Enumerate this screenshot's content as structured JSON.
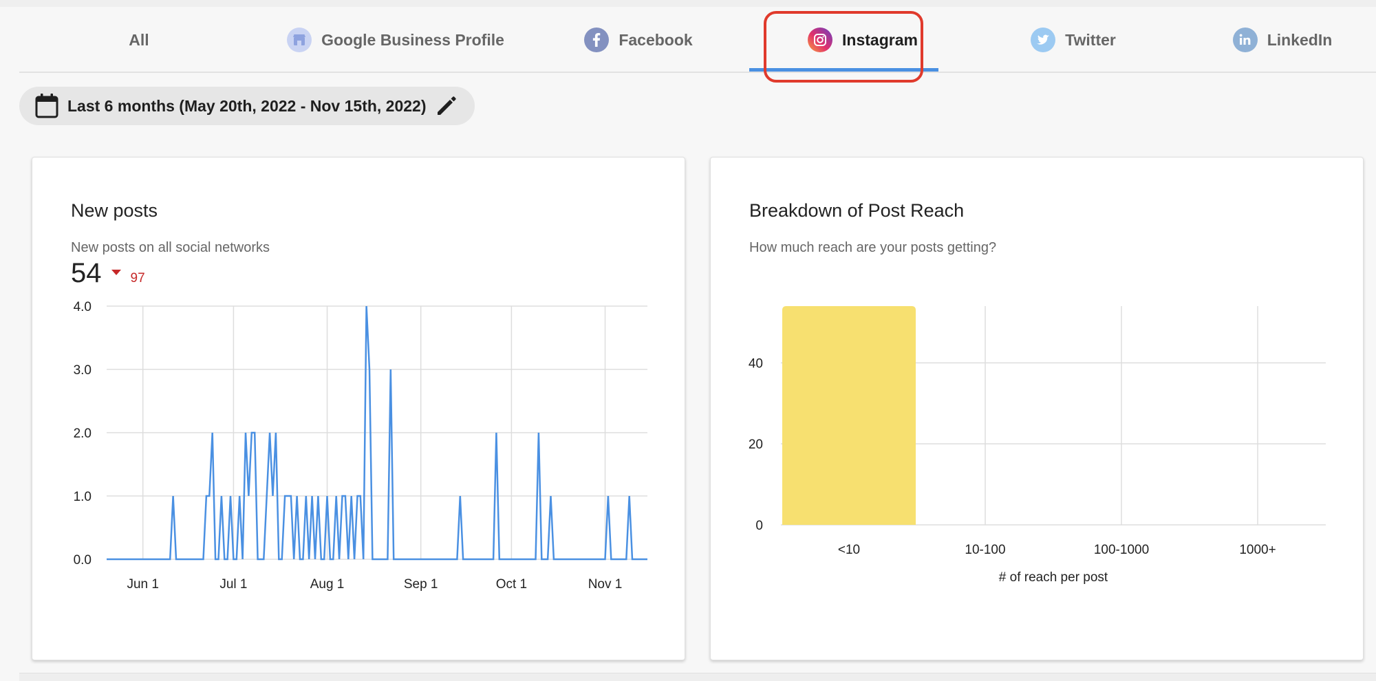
{
  "tabs": [
    {
      "label": "All",
      "icon": null
    },
    {
      "label": "Google Business Profile",
      "icon": "google-business-icon"
    },
    {
      "label": "Facebook",
      "icon": "facebook-icon"
    },
    {
      "label": "Instagram",
      "icon": "instagram-icon",
      "active": true
    },
    {
      "label": "Twitter",
      "icon": "twitter-icon"
    },
    {
      "label": "LinkedIn",
      "icon": "linkedin-icon"
    }
  ],
  "date_range": {
    "label": "Last 6 months (May 20th, 2022 - Nov 15th, 2022)",
    "icon": "calendar-icon",
    "edit_icon": "pencil-icon"
  },
  "new_posts": {
    "title": "New posts",
    "subtitle": "New posts on all social networks",
    "value": "54",
    "delta": "97",
    "delta_color": "#c62828"
  },
  "post_reach": {
    "title": "Breakdown of Post Reach",
    "subtitle": "How much reach are your posts getting?"
  },
  "colors": {
    "accent": "#4a90e2",
    "highlight": "#e03a2c",
    "line": "#4a90e2",
    "bar": "#f7e070"
  },
  "chart_data": [
    {
      "type": "line",
      "title": "New posts",
      "x_start": "2022-05-20",
      "x_end": "2022-11-15",
      "x_ticks": [
        "Jun 1",
        "Jul 1",
        "Aug 1",
        "Sep 1",
        "Oct 1",
        "Nov 1"
      ],
      "y_ticks": [
        "0.0",
        "1.0",
        "2.0",
        "3.0",
        "4.0"
      ],
      "ylim": [
        0,
        4
      ],
      "grid": true,
      "series": [
        {
          "points": [
            [
              "2022-05-20",
              0
            ],
            [
              "2022-06-10",
              0
            ],
            [
              "2022-06-11",
              1
            ],
            [
              "2022-06-12",
              0
            ],
            [
              "2022-06-21",
              0
            ],
            [
              "2022-06-22",
              1
            ],
            [
              "2022-06-23",
              1
            ],
            [
              "2022-06-24",
              2
            ],
            [
              "2022-06-25",
              0
            ],
            [
              "2022-06-26",
              0
            ],
            [
              "2022-06-27",
              1
            ],
            [
              "2022-06-28",
              0
            ],
            [
              "2022-06-29",
              0
            ],
            [
              "2022-06-30",
              1
            ],
            [
              "2022-07-01",
              0
            ],
            [
              "2022-07-02",
              0
            ],
            [
              "2022-07-03",
              1
            ],
            [
              "2022-07-04",
              0
            ],
            [
              "2022-07-05",
              2
            ],
            [
              "2022-07-06",
              1
            ],
            [
              "2022-07-07",
              2
            ],
            [
              "2022-07-08",
              2
            ],
            [
              "2022-07-09",
              0
            ],
            [
              "2022-07-11",
              0
            ],
            [
              "2022-07-12",
              1
            ],
            [
              "2022-07-13",
              2
            ],
            [
              "2022-07-14",
              1
            ],
            [
              "2022-07-15",
              2
            ],
            [
              "2022-07-16",
              0
            ],
            [
              "2022-07-17",
              0
            ],
            [
              "2022-07-18",
              1
            ],
            [
              "2022-07-20",
              1
            ],
            [
              "2022-07-21",
              0
            ],
            [
              "2022-07-22",
              1
            ],
            [
              "2022-07-23",
              0
            ],
            [
              "2022-07-24",
              0
            ],
            [
              "2022-07-25",
              1
            ],
            [
              "2022-07-26",
              0
            ],
            [
              "2022-07-27",
              1
            ],
            [
              "2022-07-28",
              0
            ],
            [
              "2022-07-29",
              1
            ],
            [
              "2022-07-30",
              0
            ],
            [
              "2022-07-31",
              0
            ],
            [
              "2022-08-01",
              1
            ],
            [
              "2022-08-02",
              0
            ],
            [
              "2022-08-03",
              0
            ],
            [
              "2022-08-04",
              1
            ],
            [
              "2022-08-05",
              0
            ],
            [
              "2022-08-06",
              1
            ],
            [
              "2022-08-07",
              1
            ],
            [
              "2022-08-08",
              0
            ],
            [
              "2022-08-09",
              1
            ],
            [
              "2022-08-10",
              0
            ],
            [
              "2022-08-11",
              1
            ],
            [
              "2022-08-12",
              1
            ],
            [
              "2022-08-13",
              0
            ],
            [
              "2022-08-14",
              4
            ],
            [
              "2022-08-15",
              3
            ],
            [
              "2022-08-16",
              0
            ],
            [
              "2022-08-21",
              0
            ],
            [
              "2022-08-22",
              3
            ],
            [
              "2022-08-23",
              0
            ],
            [
              "2022-09-13",
              0
            ],
            [
              "2022-09-14",
              1
            ],
            [
              "2022-09-15",
              0
            ],
            [
              "2022-09-25",
              0
            ],
            [
              "2022-09-26",
              2
            ],
            [
              "2022-09-27",
              0
            ],
            [
              "2022-10-09",
              0
            ],
            [
              "2022-10-10",
              2
            ],
            [
              "2022-10-11",
              0
            ],
            [
              "2022-10-13",
              0
            ],
            [
              "2022-10-14",
              1
            ],
            [
              "2022-10-15",
              0
            ],
            [
              "2022-11-01",
              0
            ],
            [
              "2022-11-02",
              1
            ],
            [
              "2022-11-03",
              0
            ],
            [
              "2022-11-08",
              0
            ],
            [
              "2022-11-09",
              1
            ],
            [
              "2022-11-10",
              0
            ],
            [
              "2022-11-15",
              0
            ]
          ]
        }
      ]
    },
    {
      "type": "bar",
      "title": "Breakdown of Post Reach",
      "categories": [
        "<10",
        "10-100",
        "100-1000",
        "1000+"
      ],
      "values": [
        54,
        0,
        0,
        0
      ],
      "xlabel": "# of reach per post",
      "y_ticks": [
        "0",
        "20",
        "40"
      ],
      "ylim": [
        0,
        54
      ],
      "grid": true
    }
  ]
}
